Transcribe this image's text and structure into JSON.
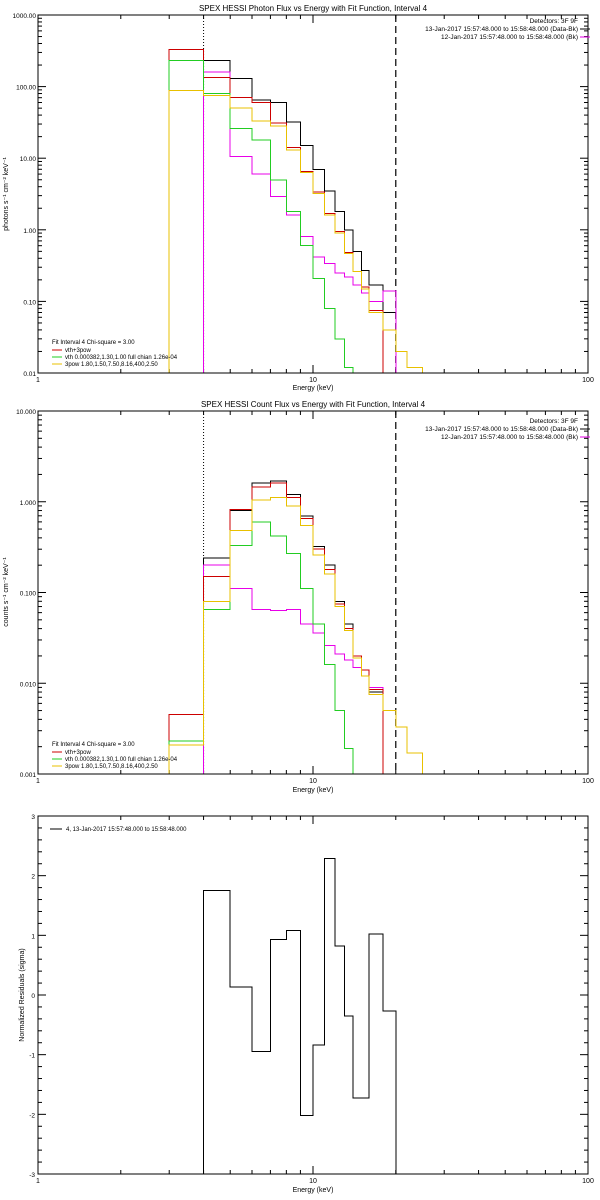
{
  "chart_data": [
    {
      "type": "line",
      "title": "SPEX HESSI Photon Flux vs Energy with Fit Function, Interval 4",
      "xlabel": "Energy (keV)",
      "ylabel": "photons s⁻¹ cm⁻² keV⁻¹",
      "xscale": "log",
      "yscale": "log",
      "xlim": [
        1,
        100
      ],
      "ylim": [
        0.01,
        1000
      ],
      "xticks": [
        "1",
        "10",
        "100"
      ],
      "yticks": [
        "0.01",
        "0.10",
        "1.00",
        "10.00",
        "100.00",
        "1000.00"
      ],
      "vlines": [
        {
          "x": 4,
          "style": "dotted"
        },
        {
          "x": 20,
          "style": "dashed"
        }
      ],
      "header_lines": [
        "Detectors: 3F 9F",
        "13-Jan-2017 15:57:48.000 to 15:58:48.000 (Data-Bk)",
        "12-Jan-2017 15:57:48.000 to 15:58:48.000 (Bk)"
      ],
      "fit_lines": [
        "Fit Interval 4   Chi-square = 3.00",
        "vth+3pow",
        "vth 0.000382,1.30,1.00  full chian 1.26e-04",
        "3pow 1.80,1.50,7.50,8.16,400,2.50"
      ],
      "bin_edges": [
        3,
        4,
        5,
        6,
        7,
        8,
        9,
        10,
        11,
        12,
        13,
        14,
        15,
        16,
        18,
        20,
        22,
        25,
        28,
        32
      ],
      "series": [
        {
          "name": "Data-Bk",
          "color": "#000000",
          "values": [
            null,
            230,
            130,
            65,
            60,
            32,
            15,
            7,
            3.5,
            1.8,
            1.0,
            0.5,
            0.27,
            0.17,
            0.07,
            null,
            null,
            null,
            null
          ]
        },
        {
          "name": "Bk",
          "color": "#e800e8",
          "values": [
            null,
            160,
            10.5,
            6.0,
            2.9,
            1.6,
            0.8,
            0.42,
            0.34,
            0.25,
            0.22,
            0.17,
            0.13,
            0.1,
            0.14,
            null,
            null,
            null,
            null
          ]
        },
        {
          "name": "vth+3pow",
          "color": "#cc0000",
          "values": [
            330,
            135,
            70,
            60,
            31,
            14,
            6.5,
            3.4,
            1.7,
            0.95,
            0.48,
            0.26,
            0.16,
            0.075,
            null,
            null,
            null,
            null,
            null
          ]
        },
        {
          "name": "vth",
          "color": "#22cc22",
          "values": [
            230,
            80,
            26,
            18,
            5,
            1.8,
            0.6,
            0.21,
            0.08,
            0.03,
            0.012,
            null,
            null,
            null,
            null,
            null,
            null,
            null,
            null
          ]
        },
        {
          "name": "3pow",
          "color": "#e8c000",
          "values": [
            88,
            75,
            50,
            33,
            28,
            13,
            6.3,
            3.2,
            1.6,
            0.9,
            0.47,
            0.26,
            0.15,
            0.07,
            0.04,
            0.02,
            0.012,
            null,
            null
          ]
        }
      ]
    },
    {
      "type": "line",
      "title": "SPEX HESSI Count Flux vs Energy with Fit Function, Interval 4",
      "xlabel": "Energy (keV)",
      "ylabel": "counts s⁻¹ cm⁻² keV⁻¹",
      "xscale": "log",
      "yscale": "log",
      "xlim": [
        1,
        100
      ],
      "ylim": [
        0.001,
        10
      ],
      "xticks": [
        "1",
        "10",
        "100"
      ],
      "yticks": [
        "0.001",
        "0.010",
        "0.100",
        "1.000",
        "10.000"
      ],
      "vlines": [
        {
          "x": 4,
          "style": "dotted"
        },
        {
          "x": 20,
          "style": "dashed"
        }
      ],
      "header_lines": [
        "Detectors: 3F 9F",
        "13-Jan-2017 15:57:48.000 to 15:58:48.000 (Data-Bk)",
        "12-Jan-2017 15:57:48.000 to 15:58:48.000 (Bk)"
      ],
      "fit_lines": [
        "Fit Interval 4   Chi-square = 3.00",
        "vth+3pow",
        "vth 0.000382,1.30,1.00  full chian 1.26e-04",
        "3pow 1.80,1.50,7.50,8.16,400,2.50"
      ],
      "bin_edges": [
        3,
        4,
        5,
        6,
        7,
        8,
        9,
        10,
        11,
        12,
        13,
        14,
        15,
        16,
        18,
        20,
        22,
        25,
        28,
        32
      ],
      "series": [
        {
          "name": "Data-Bk",
          "color": "#000000",
          "values": [
            null,
            0.24,
            0.8,
            1.6,
            1.7,
            1.2,
            0.7,
            0.32,
            0.2,
            0.08,
            0.045,
            0.02,
            0.014,
            0.008,
            null,
            null,
            null,
            null,
            null
          ]
        },
        {
          "name": "Bk",
          "color": "#e800e8",
          "values": [
            null,
            0.2,
            0.11,
            0.065,
            0.063,
            0.065,
            0.045,
            0.036,
            0.026,
            0.021,
            0.018,
            0.015,
            0.012,
            0.009,
            null,
            null,
            null,
            null,
            null
          ]
        },
        {
          "name": "vth+3pow",
          "color": "#cc0000",
          "values": [
            0.0045,
            0.15,
            0.82,
            1.45,
            1.6,
            1.12,
            0.65,
            0.3,
            0.18,
            0.075,
            0.04,
            0.02,
            0.014,
            0.0085,
            null,
            null,
            null,
            null,
            null
          ]
        },
        {
          "name": "vth",
          "color": "#22cc22",
          "values": [
            0.0023,
            0.065,
            0.33,
            0.6,
            0.42,
            0.27,
            0.11,
            0.045,
            0.016,
            0.005,
            0.0019,
            null,
            null,
            null,
            null,
            null,
            null,
            null,
            null
          ]
        },
        {
          "name": "3pow",
          "color": "#e8c000",
          "values": [
            0.0021,
            0.08,
            0.48,
            1.05,
            1.12,
            0.9,
            0.55,
            0.26,
            0.16,
            0.07,
            0.038,
            0.019,
            0.012,
            0.0075,
            0.005,
            0.0033,
            0.0017,
            null,
            null
          ]
        }
      ]
    },
    {
      "type": "line",
      "title": "",
      "xlabel": "Energy (keV)",
      "ylabel": "Normalized Residuals (sigma)",
      "xscale": "log",
      "xlim": [
        1,
        100
      ],
      "ylim": [
        -3,
        3
      ],
      "xticks": [
        "1",
        "10",
        "100"
      ],
      "yticks": [
        "-3",
        "-2",
        "-1",
        "0",
        "1",
        "2",
        "3"
      ],
      "legend_entry": "4, 13-Jan-2017 15:57:48.000 to 15:58:48.000",
      "bin_edges": [
        4,
        5,
        6,
        7,
        8,
        9,
        10,
        11,
        12,
        13,
        14,
        16,
        18,
        20
      ],
      "series": [
        {
          "name": "",
          "color": "#000000",
          "values": [
            1.75,
            0.13,
            -0.95,
            0.93,
            1.08,
            -2.02,
            -0.84,
            2.29,
            0.82,
            -0.35,
            -1.73,
            1.02,
            -0.27
          ]
        }
      ]
    }
  ]
}
